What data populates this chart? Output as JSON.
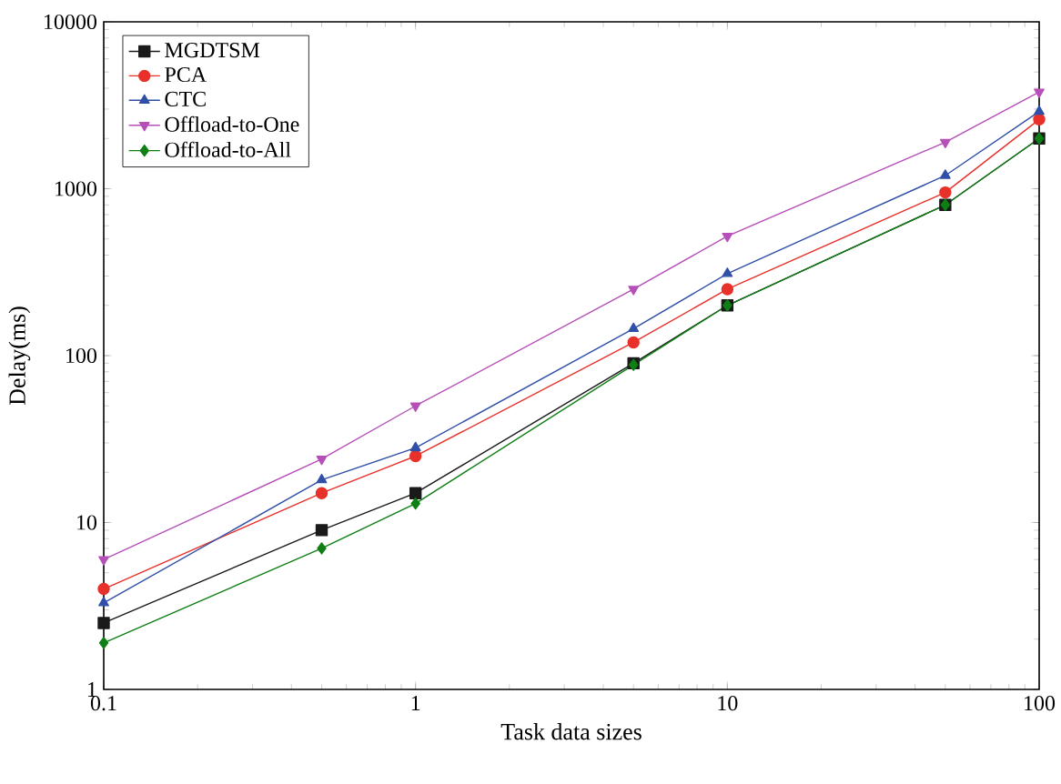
{
  "chart_data": {
    "type": "line",
    "xlabel": "Task data sizes",
    "ylabel": "Delay(ms)",
    "log": "xy",
    "x": [
      0.1,
      0.5,
      1,
      5,
      10,
      50,
      100
    ],
    "xlim": [
      0.1,
      100
    ],
    "xticks": [
      0.1,
      1,
      10,
      100
    ],
    "ylim": [
      1,
      10000
    ],
    "yticks": [
      1,
      10,
      100,
      1000,
      10000
    ],
    "legend": "top left",
    "grid": false,
    "series": [
      {
        "name": "MGDTSM",
        "color": "#1a1a1a",
        "marker": "square",
        "values": [
          2.5,
          9,
          15,
          90,
          200,
          800,
          2000
        ]
      },
      {
        "name": "PCA",
        "color": "#e8312a",
        "marker": "circle",
        "values": [
          4,
          15,
          25,
          120,
          250,
          950,
          2600
        ]
      },
      {
        "name": "CTC",
        "color": "#2f4fa8",
        "marker": "triangle",
        "values": [
          3.3,
          18,
          28,
          145,
          310,
          1200,
          2900
        ]
      },
      {
        "name": "Offload-to-One",
        "color": "#b64fb8",
        "marker": "triangle-down",
        "values": [
          6,
          24,
          50,
          250,
          520,
          1900,
          3800
        ]
      },
      {
        "name": "Offload-to-All",
        "color": "#0e7f14",
        "marker": "diamond",
        "values": [
          1.9,
          7,
          13,
          88,
          200,
          800,
          2000
        ]
      }
    ]
  }
}
